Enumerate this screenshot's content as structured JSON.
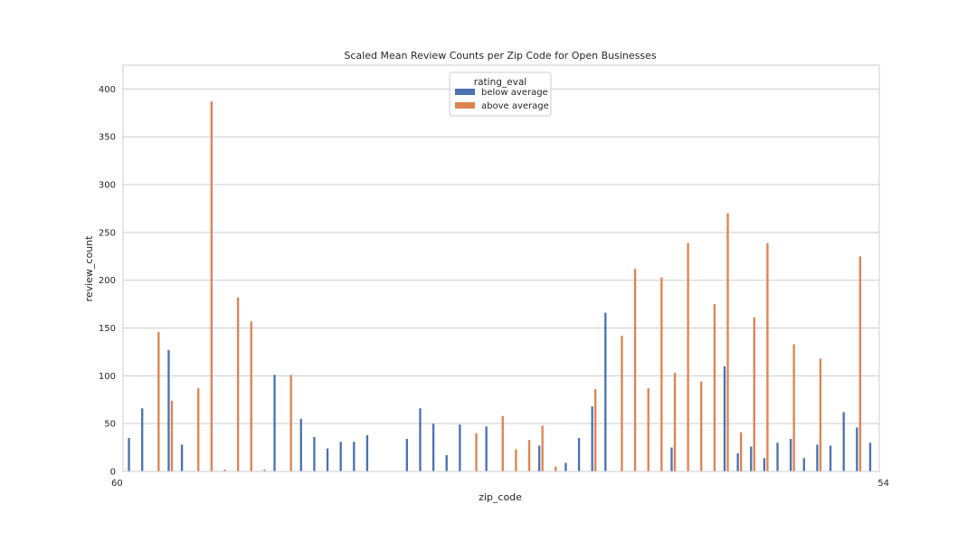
{
  "chart_data": {
    "type": "bar",
    "title": "Scaled Mean Review Counts per Zip Code for Open Businesses",
    "xlabel": "zip_code",
    "ylabel": "review_count",
    "ylim": [
      0,
      425
    ],
    "yticks": [
      0,
      50,
      100,
      150,
      200,
      250,
      300,
      350,
      400
    ],
    "grid": "y",
    "legend": {
      "title": "rating_eval",
      "placement": "top-center"
    },
    "category_count": 57,
    "first_tick_label": "60",
    "last_tick_label": "54",
    "series": [
      {
        "name": "below average",
        "color": "#4c72b0",
        "values": [
          35,
          66,
          0,
          127,
          28,
          0,
          0,
          0,
          0,
          0,
          0,
          101,
          0,
          55,
          36,
          24,
          31,
          31,
          38,
          0,
          0,
          34,
          66,
          50,
          17,
          49,
          0,
          47,
          0,
          0,
          0,
          27,
          0,
          9,
          35,
          68,
          166,
          0,
          0,
          0,
          0,
          25,
          0,
          0,
          0,
          110,
          19,
          26,
          14,
          30,
          34,
          14,
          28,
          27,
          62,
          46,
          30
        ]
      },
      {
        "name": "above average",
        "color": "#dd8452",
        "values": [
          0,
          0,
          146,
          74,
          0,
          87,
          387,
          2,
          182,
          157,
          2,
          0,
          101,
          0,
          0,
          0,
          0,
          0,
          0,
          0,
          0,
          0,
          0,
          0,
          0,
          0,
          40,
          0,
          58,
          23,
          33,
          48,
          5,
          0,
          0,
          86,
          0,
          142,
          212,
          87,
          203,
          103,
          239,
          94,
          175,
          270,
          41,
          161,
          239,
          0,
          133,
          0,
          118,
          0,
          0,
          225,
          0
        ]
      }
    ]
  }
}
